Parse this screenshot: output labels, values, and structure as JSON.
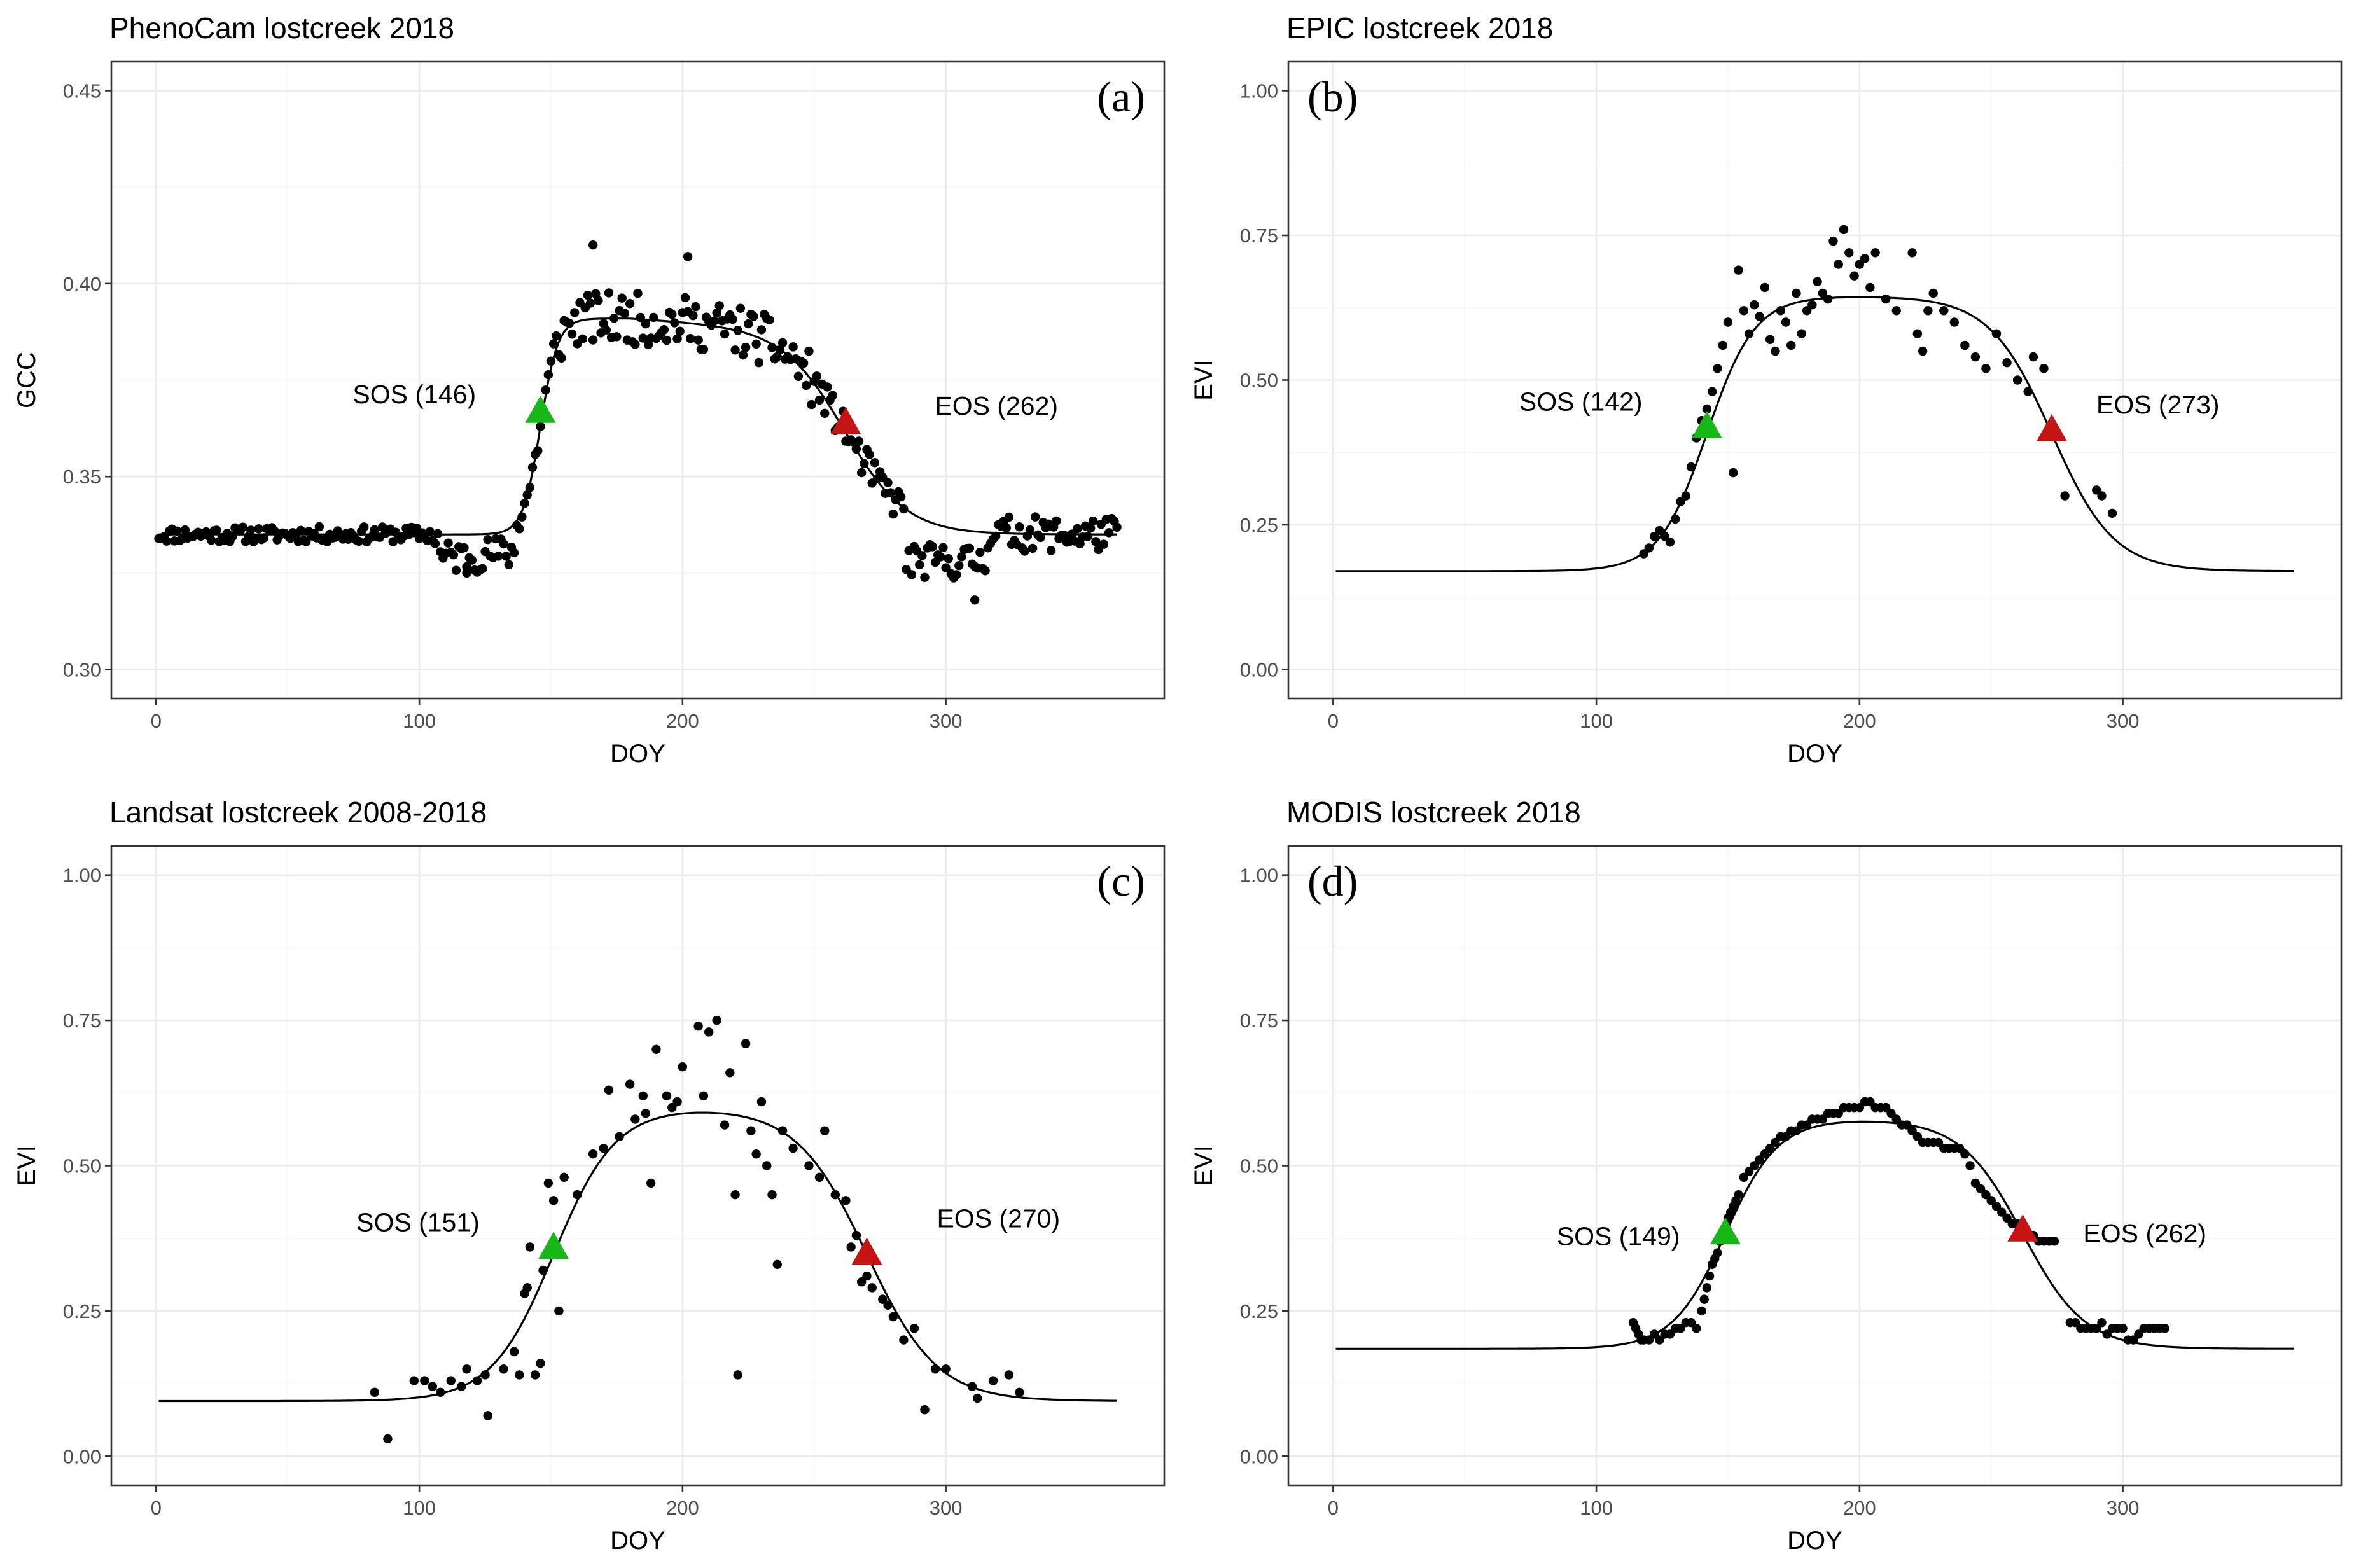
{
  "figure": {
    "description_label": "Phenology comparison lostcreek"
  },
  "colors": {
    "sos_marker": "#18b718",
    "eos_marker": "#c41414",
    "points": "#000000",
    "curve": "#000000"
  },
  "chart_data": [
    {
      "id": "a",
      "type": "scatter",
      "title": "PhenoCam lostcreek 2018",
      "panel_label": "(a)",
      "xlabel": "DOY",
      "ylabel": "GCC",
      "xlim": [
        -17,
        383
      ],
      "ylim": [
        0.2925,
        0.4575
      ],
      "xticks": [
        0,
        100,
        200,
        300
      ],
      "xtick_labels": [
        "0",
        "100",
        "200",
        "300"
      ],
      "yticks": [
        0.3,
        0.35,
        0.4,
        0.45
      ],
      "ytick_labels": [
        "0.30",
        "0.35",
        "0.40",
        "0.45"
      ],
      "curve": {
        "base": 0.335,
        "late_base": 0.335,
        "amp": 0.056,
        "rise_mid": 146,
        "rise_k": 0.3,
        "fall_mid": 262,
        "fall_k": 0.085,
        "peak_slope": 4e-05
      },
      "sos": {
        "doy": 146,
        "value": 0.367,
        "label": "SOS (146)"
      },
      "eos": {
        "doy": 262,
        "value": 0.364,
        "label": "EOS (262)"
      },
      "points_generator": {
        "x_start": 1,
        "x_end": 365,
        "step": 1,
        "noise": 0.0045,
        "seed": 11,
        "dip": {
          "start": 108,
          "end": 136,
          "value": 0.329
        },
        "post_dip": {
          "start": 285,
          "end": 315,
          "value": 0.328
        }
      },
      "extra_points": [
        [
          166,
          0.41
        ],
        [
          202,
          0.407
        ],
        [
          118,
          0.325
        ],
        [
          311,
          0.318
        ]
      ]
    },
    {
      "id": "b",
      "type": "scatter",
      "title": "EPIC lostcreek 2018",
      "panel_label": "(b)",
      "xlabel": "DOY",
      "ylabel": "EVI",
      "xlim": [
        -17,
        383
      ],
      "ylim": [
        -0.05,
        1.05
      ],
      "xticks": [
        0,
        100,
        200,
        300
      ],
      "xtick_labels": [
        "0",
        "100",
        "200",
        "300"
      ],
      "yticks": [
        0,
        0.25,
        0.5,
        0.75,
        1
      ],
      "ytick_labels": [
        "0.00",
        "0.25",
        "0.50",
        "0.75",
        "1.00"
      ],
      "curve": {
        "base": 0.17,
        "late_base": 0.17,
        "amp": 0.475,
        "rise_mid": 142,
        "rise_k": 0.11,
        "fall_mid": 273,
        "fall_k": 0.085,
        "peak_slope": 0
      },
      "sos": {
        "doy": 142,
        "value": 0.42,
        "label": "SOS (142)"
      },
      "eos": {
        "doy": 273,
        "value": 0.415,
        "label": "EOS (273)"
      },
      "points": [
        [
          118,
          0.2
        ],
        [
          120,
          0.21
        ],
        [
          122,
          0.23
        ],
        [
          124,
          0.24
        ],
        [
          126,
          0.23
        ],
        [
          128,
          0.22
        ],
        [
          130,
          0.26
        ],
        [
          132,
          0.29
        ],
        [
          134,
          0.3
        ],
        [
          136,
          0.35
        ],
        [
          138,
          0.4
        ],
        [
          140,
          0.43
        ],
        [
          142,
          0.45
        ],
        [
          144,
          0.48
        ],
        [
          146,
          0.52
        ],
        [
          148,
          0.56
        ],
        [
          150,
          0.6
        ],
        [
          152,
          0.34
        ],
        [
          154,
          0.69
        ],
        [
          156,
          0.62
        ],
        [
          158,
          0.58
        ],
        [
          160,
          0.63
        ],
        [
          162,
          0.61
        ],
        [
          164,
          0.66
        ],
        [
          166,
          0.57
        ],
        [
          168,
          0.55
        ],
        [
          170,
          0.62
        ],
        [
          172,
          0.6
        ],
        [
          174,
          0.56
        ],
        [
          176,
          0.65
        ],
        [
          178,
          0.58
        ],
        [
          180,
          0.62
        ],
        [
          182,
          0.63
        ],
        [
          184,
          0.67
        ],
        [
          186,
          0.65
        ],
        [
          188,
          0.64
        ],
        [
          190,
          0.74
        ],
        [
          192,
          0.7
        ],
        [
          194,
          0.76
        ],
        [
          196,
          0.72
        ],
        [
          198,
          0.68
        ],
        [
          200,
          0.7
        ],
        [
          202,
          0.71
        ],
        [
          204,
          0.66
        ],
        [
          206,
          0.72
        ],
        [
          210,
          0.64
        ],
        [
          214,
          0.62
        ],
        [
          220,
          0.72
        ],
        [
          222,
          0.58
        ],
        [
          224,
          0.55
        ],
        [
          226,
          0.62
        ],
        [
          228,
          0.65
        ],
        [
          232,
          0.62
        ],
        [
          236,
          0.6
        ],
        [
          240,
          0.56
        ],
        [
          244,
          0.54
        ],
        [
          248,
          0.52
        ],
        [
          252,
          0.58
        ],
        [
          256,
          0.53
        ],
        [
          260,
          0.5
        ],
        [
          264,
          0.48
        ],
        [
          266,
          0.54
        ],
        [
          270,
          0.52
        ],
        [
          278,
          0.3
        ],
        [
          290,
          0.31
        ],
        [
          292,
          0.3
        ],
        [
          296,
          0.27
        ]
      ]
    },
    {
      "id": "c",
      "type": "scatter",
      "title": "Landsat lostcreek 2008-2018",
      "panel_label": "(c)",
      "xlabel": "DOY",
      "ylabel": "EVI",
      "xlim": [
        -17,
        383
      ],
      "ylim": [
        -0.05,
        1.05
      ],
      "xticks": [
        0,
        100,
        200,
        300
      ],
      "xtick_labels": [
        "0",
        "100",
        "200",
        "300"
      ],
      "yticks": [
        0,
        0.25,
        0.5,
        0.75,
        1
      ],
      "ytick_labels": [
        "0.00",
        "0.25",
        "0.50",
        "0.75",
        "1.00"
      ],
      "curve": {
        "base": 0.095,
        "late_base": 0.095,
        "amp": 0.505,
        "rise_mid": 151,
        "rise_k": 0.085,
        "fall_mid": 270,
        "fall_k": 0.075,
        "peak_slope": 0
      },
      "sos": {
        "doy": 151,
        "value": 0.36,
        "label": "SOS (151)"
      },
      "eos": {
        "doy": 270,
        "value": 0.35,
        "label": "EOS (270)"
      },
      "points": [
        [
          83,
          0.11
        ],
        [
          88,
          0.03
        ],
        [
          98,
          0.13
        ],
        [
          102,
          0.13
        ],
        [
          105,
          0.12
        ],
        [
          108,
          0.11
        ],
        [
          112,
          0.13
        ],
        [
          116,
          0.12
        ],
        [
          118,
          0.15
        ],
        [
          122,
          0.13
        ],
        [
          125,
          0.14
        ],
        [
          126,
          0.07
        ],
        [
          132,
          0.15
        ],
        [
          136,
          0.18
        ],
        [
          138,
          0.14
        ],
        [
          140,
          0.28
        ],
        [
          141,
          0.29
        ],
        [
          142,
          0.36
        ],
        [
          144,
          0.14
        ],
        [
          146,
          0.16
        ],
        [
          147,
          0.32
        ],
        [
          149,
          0.47
        ],
        [
          151,
          0.44
        ],
        [
          153,
          0.25
        ],
        [
          155,
          0.48
        ],
        [
          160,
          0.45
        ],
        [
          166,
          0.52
        ],
        [
          170,
          0.53
        ],
        [
          172,
          0.63
        ],
        [
          176,
          0.55
        ],
        [
          180,
          0.64
        ],
        [
          182,
          0.58
        ],
        [
          185,
          0.62
        ],
        [
          186,
          0.59
        ],
        [
          188,
          0.47
        ],
        [
          190,
          0.7
        ],
        [
          194,
          0.62
        ],
        [
          196,
          0.6
        ],
        [
          198,
          0.61
        ],
        [
          200,
          0.67
        ],
        [
          206,
          0.74
        ],
        [
          208,
          0.62
        ],
        [
          210,
          0.73
        ],
        [
          213,
          0.75
        ],
        [
          216,
          0.57
        ],
        [
          218,
          0.66
        ],
        [
          220,
          0.45
        ],
        [
          221,
          0.14
        ],
        [
          224,
          0.71
        ],
        [
          226,
          0.56
        ],
        [
          228,
          0.52
        ],
        [
          230,
          0.61
        ],
        [
          232,
          0.5
        ],
        [
          234,
          0.45
        ],
        [
          236,
          0.33
        ],
        [
          238,
          0.56
        ],
        [
          242,
          0.53
        ],
        [
          248,
          0.5
        ],
        [
          252,
          0.48
        ],
        [
          254,
          0.56
        ],
        [
          258,
          0.45
        ],
        [
          262,
          0.44
        ],
        [
          264,
          0.36
        ],
        [
          266,
          0.38
        ],
        [
          268,
          0.3
        ],
        [
          270,
          0.31
        ],
        [
          272,
          0.29
        ],
        [
          276,
          0.27
        ],
        [
          278,
          0.26
        ],
        [
          280,
          0.24
        ],
        [
          284,
          0.2
        ],
        [
          288,
          0.22
        ],
        [
          292,
          0.08
        ],
        [
          296,
          0.15
        ],
        [
          300,
          0.15
        ],
        [
          310,
          0.12
        ],
        [
          312,
          0.1
        ],
        [
          318,
          0.13
        ],
        [
          324,
          0.14
        ],
        [
          328,
          0.11
        ]
      ]
    },
    {
      "id": "d",
      "type": "scatter",
      "title": "MODIS lostcreek 2018",
      "panel_label": "(d)",
      "xlabel": "DOY",
      "ylabel": "EVI",
      "xlim": [
        -17,
        383
      ],
      "ylim": [
        -0.05,
        1.05
      ],
      "xticks": [
        0,
        100,
        200,
        300
      ],
      "xtick_labels": [
        "0",
        "100",
        "200",
        "300"
      ],
      "yticks": [
        0,
        0.25,
        0.5,
        0.75,
        1
      ],
      "ytick_labels": [
        "0.00",
        "0.25",
        "0.50",
        "0.75",
        "1.00"
      ],
      "curve": {
        "base": 0.185,
        "late_base": 0.185,
        "amp": 0.395,
        "rise_mid": 149,
        "rise_k": 0.1,
        "fall_mid": 262,
        "fall_k": 0.085,
        "peak_slope": 0
      },
      "sos": {
        "doy": 149,
        "value": 0.385,
        "label": "SOS (149)"
      },
      "eos": {
        "doy": 262,
        "value": 0.39,
        "label": "EOS (262)"
      },
      "points": [
        [
          114,
          0.23
        ],
        [
          115,
          0.22
        ],
        [
          116,
          0.21
        ],
        [
          117,
          0.2
        ],
        [
          118,
          0.2
        ],
        [
          120,
          0.2
        ],
        [
          122,
          0.21
        ],
        [
          124,
          0.2
        ],
        [
          126,
          0.21
        ],
        [
          128,
          0.21
        ],
        [
          130,
          0.22
        ],
        [
          132,
          0.22
        ],
        [
          134,
          0.23
        ],
        [
          136,
          0.23
        ],
        [
          138,
          0.22
        ],
        [
          140,
          0.25
        ],
        [
          141,
          0.27
        ],
        [
          142,
          0.29
        ],
        [
          143,
          0.31
        ],
        [
          144,
          0.33
        ],
        [
          145,
          0.34
        ],
        [
          146,
          0.35
        ],
        [
          147,
          0.37
        ],
        [
          148,
          0.38
        ],
        [
          149,
          0.39
        ],
        [
          150,
          0.41
        ],
        [
          151,
          0.42
        ],
        [
          152,
          0.43
        ],
        [
          153,
          0.44
        ],
        [
          154,
          0.45
        ],
        [
          156,
          0.48
        ],
        [
          158,
          0.49
        ],
        [
          160,
          0.5
        ],
        [
          162,
          0.51
        ],
        [
          164,
          0.52
        ],
        [
          166,
          0.53
        ],
        [
          168,
          0.54
        ],
        [
          170,
          0.55
        ],
        [
          172,
          0.55
        ],
        [
          174,
          0.56
        ],
        [
          176,
          0.56
        ],
        [
          178,
          0.57
        ],
        [
          180,
          0.57
        ],
        [
          182,
          0.58
        ],
        [
          184,
          0.58
        ],
        [
          186,
          0.58
        ],
        [
          188,
          0.59
        ],
        [
          190,
          0.59
        ],
        [
          192,
          0.59
        ],
        [
          194,
          0.6
        ],
        [
          196,
          0.6
        ],
        [
          198,
          0.6
        ],
        [
          200,
          0.6
        ],
        [
          202,
          0.61
        ],
        [
          204,
          0.61
        ],
        [
          206,
          0.6
        ],
        [
          208,
          0.6
        ],
        [
          210,
          0.6
        ],
        [
          212,
          0.59
        ],
        [
          214,
          0.58
        ],
        [
          216,
          0.57
        ],
        [
          218,
          0.57
        ],
        [
          220,
          0.56
        ],
        [
          222,
          0.55
        ],
        [
          224,
          0.54
        ],
        [
          226,
          0.54
        ],
        [
          228,
          0.54
        ],
        [
          230,
          0.54
        ],
        [
          232,
          0.53
        ],
        [
          234,
          0.53
        ],
        [
          236,
          0.53
        ],
        [
          238,
          0.53
        ],
        [
          240,
          0.52
        ],
        [
          242,
          0.5
        ],
        [
          244,
          0.47
        ],
        [
          246,
          0.46
        ],
        [
          248,
          0.45
        ],
        [
          250,
          0.44
        ],
        [
          252,
          0.43
        ],
        [
          254,
          0.42
        ],
        [
          256,
          0.41
        ],
        [
          258,
          0.4
        ],
        [
          260,
          0.4
        ],
        [
          262,
          0.39
        ],
        [
          264,
          0.38
        ],
        [
          266,
          0.38
        ],
        [
          268,
          0.37
        ],
        [
          270,
          0.37
        ],
        [
          272,
          0.37
        ],
        [
          274,
          0.37
        ],
        [
          280,
          0.23
        ],
        [
          282,
          0.23
        ],
        [
          284,
          0.22
        ],
        [
          286,
          0.22
        ],
        [
          288,
          0.22
        ],
        [
          290,
          0.22
        ],
        [
          292,
          0.23
        ],
        [
          294,
          0.21
        ],
        [
          296,
          0.22
        ],
        [
          298,
          0.22
        ],
        [
          300,
          0.22
        ],
        [
          302,
          0.2
        ],
        [
          304,
          0.2
        ],
        [
          306,
          0.21
        ],
        [
          308,
          0.22
        ],
        [
          310,
          0.22
        ],
        [
          312,
          0.22
        ],
        [
          314,
          0.22
        ],
        [
          316,
          0.22
        ]
      ]
    }
  ]
}
